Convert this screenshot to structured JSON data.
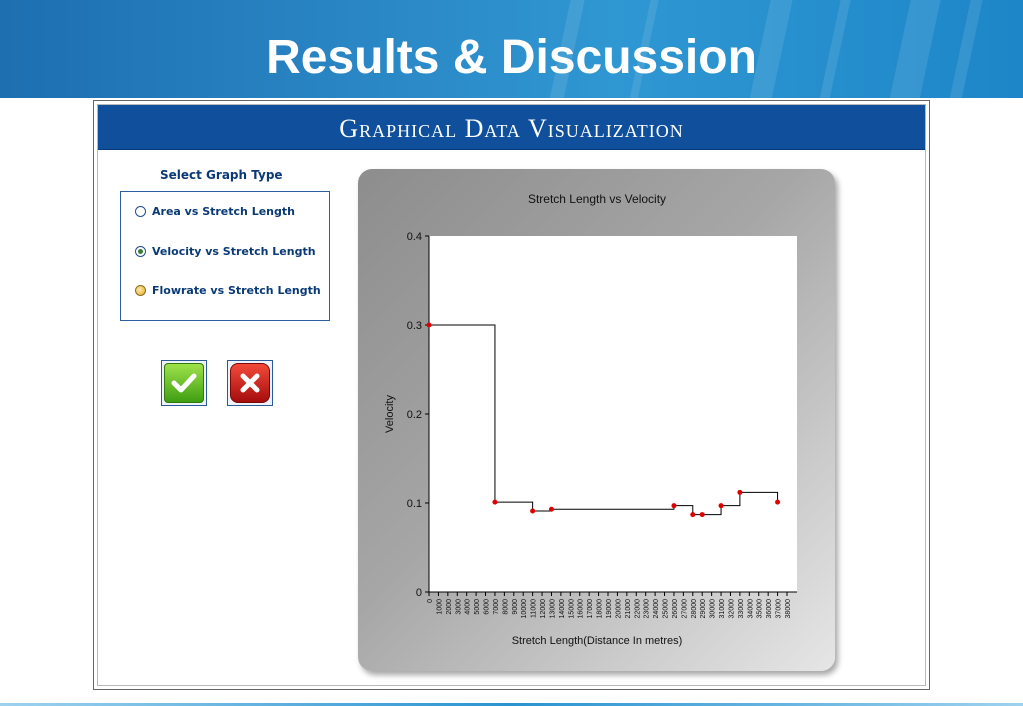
{
  "slide": {
    "title": "Results & Discussion"
  },
  "window": {
    "title": "Graphical Data Visualization"
  },
  "controls": {
    "select_label": "Select Graph Type",
    "options": [
      {
        "label": "Area vs Stretch Length",
        "selected": false
      },
      {
        "label": "Velocity vs Stretch Length",
        "selected": true
      },
      {
        "label": "Flowrate vs Stretch Length",
        "selected": false
      }
    ],
    "ok_icon": "checkmark-icon",
    "cancel_icon": "close-icon"
  },
  "colors": {
    "header": "#0f4f9b",
    "banner": "#2a86c4",
    "point": "#e00000",
    "line": "#000000"
  },
  "chart_data": {
    "type": "line",
    "step": true,
    "title": "Stretch Length vs Velocity",
    "xlabel": "Stretch Length(Distance In metres)",
    "ylabel": "Velocity",
    "xlim": [
      0,
      38000
    ],
    "ylim": [
      0,
      0.4
    ],
    "yticks": [
      0,
      0.1,
      0.2,
      0.3,
      0.4
    ],
    "xtick_labels": [
      "0",
      "1000",
      "2000",
      "3000",
      "4000",
      "5000",
      "6000",
      "7000",
      "8000",
      "9000",
      "10000",
      "11000",
      "12000",
      "13000",
      "14000",
      "15000",
      "16000",
      "17000",
      "18000",
      "19000",
      "20000",
      "21000",
      "22000",
      "23000",
      "24000",
      "25000",
      "26000",
      "27000",
      "28000",
      "29000",
      "30000",
      "31000",
      "32000",
      "33000",
      "34000",
      "35000",
      "36000",
      "37000",
      "38000"
    ],
    "x": [
      0,
      7000,
      11000,
      13000,
      26000,
      28000,
      29000,
      31000,
      33000,
      37000
    ],
    "y": [
      0.3,
      0.101,
      0.091,
      0.093,
      0.097,
      0.087,
      0.087,
      0.097,
      0.112,
      0.101
    ]
  }
}
